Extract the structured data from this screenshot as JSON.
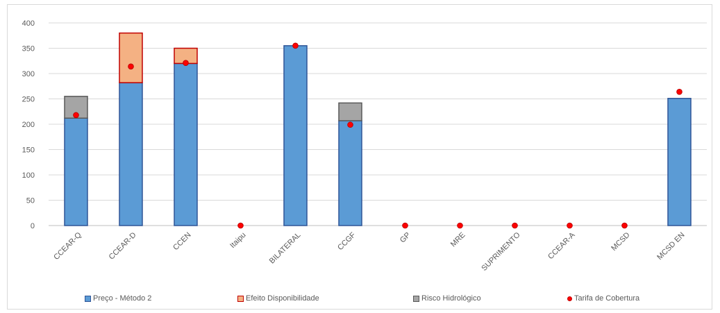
{
  "chart_data": {
    "type": "bar",
    "stacked": true,
    "title": "",
    "xlabel": "",
    "ylabel": "",
    "ylim": [
      0,
      400
    ],
    "yticks": [
      0,
      50,
      100,
      150,
      200,
      250,
      300,
      350,
      400
    ],
    "grid": "horizontal",
    "legend_position": "bottom",
    "categories": [
      "CCEAR-Q",
      "CCEAR-D",
      "CCEN",
      "Itaipu",
      "BILATERAL",
      "CCGF",
      "GP",
      "MRE",
      "SUPRIMENTO",
      "CCEAR-A",
      "MCSD",
      "MCSD EN"
    ],
    "series": [
      {
        "name": "Preço - Método 2",
        "kind": "bar",
        "color": "#5b9bd5",
        "edge": "#2f5597",
        "values": [
          212,
          282,
          320,
          0,
          355,
          207,
          0,
          0,
          0,
          0,
          0,
          251
        ]
      },
      {
        "name": "Efeito Disponibilidade",
        "kind": "bar",
        "color": "#f4b183",
        "edge": "#c00000",
        "values": [
          0,
          98,
          30,
          0,
          0,
          0,
          0,
          0,
          0,
          0,
          0,
          0
        ]
      },
      {
        "name": "Risco Hidrológico",
        "kind": "bar",
        "color": "#a5a5a5",
        "edge": "#595959",
        "values": [
          43,
          0,
          0,
          0,
          0,
          35,
          0,
          0,
          0,
          0,
          0,
          0
        ]
      },
      {
        "name": "Tarifa de Cobertura",
        "kind": "marker",
        "color": "#ff0000",
        "edge": "#c00000",
        "values": [
          218,
          314,
          321,
          0,
          355,
          199,
          0,
          0,
          0,
          0,
          0,
          264
        ]
      }
    ]
  }
}
